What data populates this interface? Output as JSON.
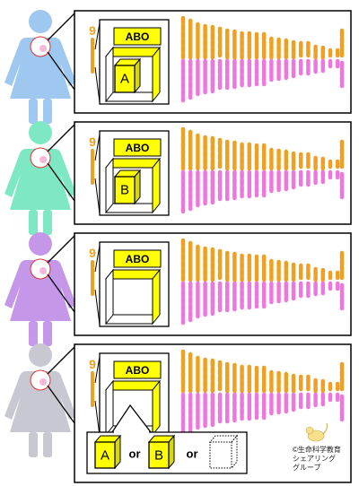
{
  "colors": {
    "paternal": "#f0a020",
    "maternal": "#ee77dd",
    "box": "#ffff00",
    "figures": [
      "#9ec8ef",
      "#7ee8c4",
      "#c497e8",
      "#c8c8d2"
    ]
  },
  "panels": [
    {
      "figure": "woman-blue",
      "chromosome_label": "9",
      "gene_label": "ABO",
      "allele": "A"
    },
    {
      "figure": "woman-green",
      "chromosome_label": "9",
      "gene_label": "ABO",
      "allele": "B"
    },
    {
      "figure": "woman-purple",
      "chromosome_label": "9",
      "gene_label": "ABO",
      "allele": ""
    },
    {
      "figure": "woman-gray",
      "chromosome_label": "9",
      "gene_label": "ABO",
      "allele": ""
    }
  ],
  "options": {
    "first": "A",
    "separator1": "or",
    "second": "B",
    "separator2": "or"
  },
  "credit": {
    "line1": "©生命科学教育",
    "line2": "シェアリング",
    "line3": "グループ"
  }
}
